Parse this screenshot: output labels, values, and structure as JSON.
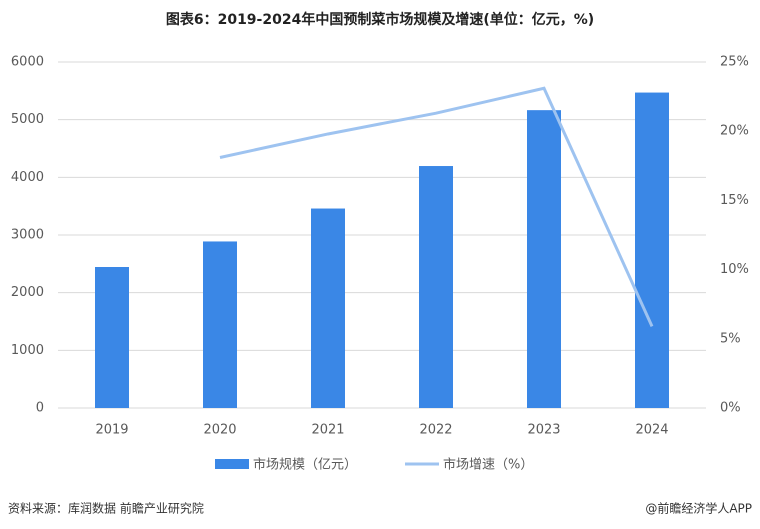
{
  "chart_data": {
    "type": "bar-line",
    "title": "图表6：2019-2024年中国预制菜市场规模及增速(单位：亿元，%)",
    "categories": [
      "2019",
      "2020",
      "2021",
      "2022",
      "2023",
      "2024"
    ],
    "series": [
      {
        "name": "市场规模（亿元）",
        "color": "#3a87e6",
        "type": "bar",
        "values": [
          2445,
          2888,
          3459,
          4196,
          5165,
          5470
        ]
      },
      {
        "name": "市场增速（%）",
        "color": "#9ec3f0",
        "type": "line",
        "axis": "y2",
        "values": [
          null,
          18.1,
          19.8,
          21.3,
          23.1,
          5.9
        ]
      }
    ],
    "ylim": [
      0,
      6000
    ],
    "yticks": [
      0,
      1000,
      2000,
      3000,
      4000,
      5000,
      6000
    ],
    "y2lim": [
      0,
      25
    ],
    "y2ticks": [
      {
        "value": 0,
        "label": "0%"
      },
      {
        "value": 5,
        "label": "5%"
      },
      {
        "value": 10,
        "label": "10%"
      },
      {
        "value": 15,
        "label": "15%"
      },
      {
        "value": 20,
        "label": "20%"
      },
      {
        "value": 25,
        "label": "25%"
      }
    ],
    "grid": true,
    "source": "资料来源：库润数据 前瞻产业研究院",
    "credit": "@前瞻经济学人APP"
  }
}
